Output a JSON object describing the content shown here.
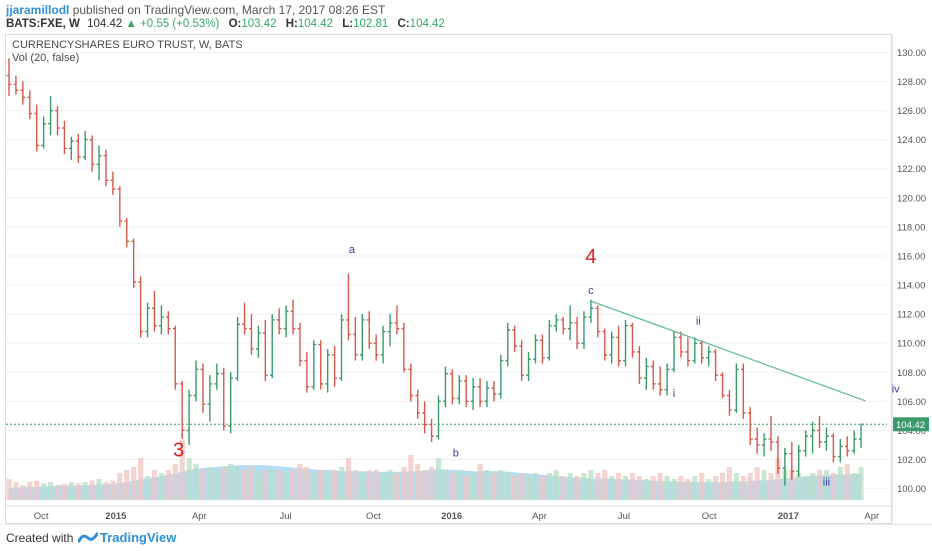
{
  "header": {
    "author": "jjaramillodl",
    "published": "published on TradingView.com, March 17, 2017 08:26 EST",
    "symbol": "BATS:FXE, W",
    "price": "104.42",
    "change": "+0.55 (+0.53%)",
    "o_label": "O:",
    "o_val": "103.42",
    "h_label": "H:",
    "h_val": "104.42",
    "l_label": "L:",
    "l_val": "102.81",
    "c_label": "C:",
    "c_val": "104.42"
  },
  "footer": {
    "created": "Created with",
    "brand": "TradingView"
  },
  "colors": {
    "up": "#3a9a6a",
    "down": "#d65a4a",
    "volume": "#a9d6ee",
    "trend": "#5fb89a",
    "count_red": "#e02020",
    "count_blue": "#3a3aa0"
  },
  "chart_data": {
    "type": "ohlc",
    "title": "CURRENCYSHARES EURO TRUST, W, BATS",
    "indicator": "Vol (20, false)",
    "y_ticks": [
      "130.00",
      "128.00",
      "126.00",
      "124.00",
      "122.00",
      "120.00",
      "118.00",
      "116.00",
      "114.00",
      "112.00",
      "110.00",
      "108.00",
      "106.00",
      "104.00",
      "102.00",
      "100.00"
    ],
    "ylim": [
      98.8,
      131.2
    ],
    "x_labels": [
      "Oct",
      "2015",
      "Apr",
      "Jul",
      "Oct",
      "2016",
      "Apr",
      "Jul",
      "Oct",
      "2017",
      "Apr"
    ],
    "last_price": "104.42",
    "bars": [
      [
        128.4,
        129.6,
        127.0,
        127.8
      ],
      [
        127.8,
        128.4,
        127.1,
        127.4
      ],
      [
        127.4,
        128.0,
        126.4,
        126.9
      ],
      [
        126.9,
        127.4,
        125.4,
        125.8
      ],
      [
        125.8,
        126.4,
        123.2,
        123.6
      ],
      [
        123.6,
        125.6,
        123.4,
        125.1
      ],
      [
        125.1,
        127.0,
        124.3,
        126.0
      ],
      [
        126.0,
        126.3,
        124.3,
        124.8
      ],
      [
        124.8,
        125.3,
        123.0,
        123.4
      ],
      [
        123.4,
        124.2,
        122.6,
        123.9
      ],
      [
        123.9,
        124.4,
        122.4,
        122.8
      ],
      [
        122.8,
        124.6,
        122.6,
        124.0
      ],
      [
        124.0,
        124.3,
        121.8,
        122.3
      ],
      [
        122.3,
        123.6,
        121.2,
        122.9
      ],
      [
        122.9,
        123.3,
        120.8,
        121.2
      ],
      [
        121.2,
        121.8,
        120.2,
        120.6
      ],
      [
        120.6,
        120.8,
        118.0,
        118.4
      ],
      [
        118.4,
        118.6,
        116.6,
        117.0
      ],
      [
        117.0,
        117.2,
        113.8,
        114.2
      ],
      [
        114.2,
        114.6,
        110.4,
        110.8
      ],
      [
        110.8,
        112.8,
        110.4,
        112.4
      ],
      [
        112.4,
        113.6,
        110.8,
        111.2
      ],
      [
        111.2,
        112.6,
        110.6,
        111.8
      ],
      [
        111.8,
        112.2,
        110.6,
        111.0
      ],
      [
        111.0,
        111.2,
        106.8,
        107.2
      ],
      [
        107.2,
        107.4,
        103.4,
        104.0
      ],
      [
        104.0,
        106.8,
        103.0,
        106.4
      ],
      [
        106.4,
        108.8,
        106.0,
        108.2
      ],
      [
        108.2,
        108.6,
        105.2,
        105.8
      ],
      [
        105.8,
        107.8,
        104.6,
        107.2
      ],
      [
        107.2,
        108.6,
        106.8,
        107.9
      ],
      [
        107.9,
        108.3,
        104.0,
        104.3
      ],
      [
        104.3,
        108.0,
        103.8,
        107.6
      ],
      [
        107.6,
        111.8,
        107.4,
        111.3
      ],
      [
        111.3,
        112.8,
        110.6,
        111.0
      ],
      [
        111.0,
        112.0,
        109.2,
        109.6
      ],
      [
        109.6,
        111.2,
        109.0,
        110.7
      ],
      [
        110.7,
        111.6,
        107.4,
        107.8
      ],
      [
        107.8,
        112.0,
        107.6,
        111.6
      ],
      [
        111.6,
        112.4,
        110.6,
        111.0
      ],
      [
        111.0,
        112.6,
        110.4,
        112.2
      ],
      [
        112.2,
        113.0,
        110.6,
        111.0
      ],
      [
        111.0,
        111.4,
        108.4,
        108.8
      ],
      [
        108.8,
        109.4,
        106.6,
        107.0
      ],
      [
        107.0,
        110.2,
        106.8,
        109.9
      ],
      [
        109.9,
        110.2,
        106.8,
        107.2
      ],
      [
        107.2,
        109.6,
        106.6,
        109.2
      ],
      [
        109.2,
        109.8,
        107.0,
        107.6
      ],
      [
        107.6,
        112.0,
        107.4,
        111.6
      ],
      [
        111.6,
        114.8,
        110.2,
        110.6
      ],
      [
        110.6,
        111.8,
        108.8,
        109.2
      ],
      [
        109.2,
        112.0,
        108.8,
        111.6
      ],
      [
        111.6,
        112.2,
        109.6,
        110.0
      ],
      [
        110.0,
        110.6,
        108.8,
        109.2
      ],
      [
        109.2,
        111.2,
        108.6,
        110.8
      ],
      [
        110.8,
        112.0,
        109.8,
        111.4
      ],
      [
        111.4,
        112.6,
        110.6,
        111.0
      ],
      [
        111.0,
        111.4,
        108.0,
        108.2
      ],
      [
        108.2,
        108.6,
        106.0,
        106.4
      ],
      [
        106.4,
        106.8,
        104.8,
        105.2
      ],
      [
        105.2,
        106.0,
        103.8,
        104.4
      ],
      [
        104.4,
        104.8,
        103.2,
        103.6
      ],
      [
        103.6,
        106.4,
        103.4,
        106.0
      ],
      [
        106.0,
        108.4,
        105.6,
        107.9
      ],
      [
        107.9,
        108.2,
        105.8,
        106.2
      ],
      [
        106.2,
        107.8,
        105.8,
        107.4
      ],
      [
        107.4,
        107.8,
        105.6,
        106.0
      ],
      [
        106.0,
        107.6,
        105.4,
        107.0
      ],
      [
        107.0,
        107.6,
        105.6,
        106.0
      ],
      [
        106.0,
        107.4,
        105.6,
        106.9
      ],
      [
        106.9,
        107.4,
        106.0,
        106.5
      ],
      [
        106.5,
        109.2,
        106.2,
        108.8
      ],
      [
        108.8,
        111.4,
        108.4,
        110.9
      ],
      [
        110.9,
        111.2,
        109.4,
        109.8
      ],
      [
        109.8,
        110.2,
        107.4,
        107.8
      ],
      [
        107.8,
        109.4,
        107.4,
        108.9
      ],
      [
        108.9,
        110.6,
        108.6,
        110.2
      ],
      [
        110.2,
        110.6,
        108.6,
        109.0
      ],
      [
        109.0,
        111.6,
        108.8,
        111.2
      ],
      [
        111.2,
        112.0,
        110.8,
        111.6
      ],
      [
        111.6,
        111.8,
        110.6,
        111.0
      ],
      [
        111.0,
        112.6,
        110.2,
        111.4
      ],
      [
        111.4,
        111.8,
        109.6,
        110.0
      ],
      [
        110.0,
        112.2,
        109.6,
        111.8
      ],
      [
        111.8,
        113.0,
        111.4,
        112.4
      ],
      [
        112.4,
        112.6,
        110.4,
        110.8
      ],
      [
        110.8,
        111.0,
        108.8,
        109.2
      ],
      [
        109.2,
        110.8,
        108.6,
        110.4
      ],
      [
        110.4,
        111.2,
        108.4,
        108.8
      ],
      [
        108.8,
        111.6,
        108.4,
        111.2
      ],
      [
        111.2,
        111.4,
        109.0,
        109.4
      ],
      [
        109.4,
        109.8,
        107.2,
        107.6
      ],
      [
        107.6,
        109.0,
        106.8,
        108.4
      ],
      [
        108.4,
        108.8,
        106.8,
        107.2
      ],
      [
        107.2,
        108.4,
        106.4,
        106.8
      ],
      [
        106.8,
        108.6,
        106.4,
        108.2
      ],
      [
        108.2,
        110.8,
        108.0,
        110.4
      ],
      [
        110.4,
        110.8,
        109.0,
        109.4
      ],
      [
        109.4,
        110.4,
        108.4,
        108.8
      ],
      [
        108.8,
        110.4,
        108.6,
        110.0
      ],
      [
        110.0,
        110.2,
        108.6,
        109.0
      ],
      [
        109.0,
        109.8,
        108.4,
        109.4
      ],
      [
        109.4,
        109.6,
        107.4,
        107.8
      ],
      [
        107.8,
        108.0,
        106.2,
        106.4
      ],
      [
        106.4,
        106.8,
        105.0,
        105.4
      ],
      [
        105.4,
        108.6,
        105.2,
        108.2
      ],
      [
        108.2,
        108.6,
        104.8,
        105.2
      ],
      [
        105.2,
        105.6,
        103.0,
        103.4
      ],
      [
        103.4,
        104.2,
        102.4,
        103.0
      ],
      [
        103.0,
        103.8,
        102.2,
        103.4
      ],
      [
        103.4,
        105.0,
        102.6,
        103.2
      ],
      [
        103.2,
        103.6,
        101.0,
        101.4
      ],
      [
        101.4,
        102.8,
        100.2,
        102.4
      ],
      [
        102.4,
        103.2,
        100.6,
        101.2
      ],
      [
        101.2,
        103.0,
        100.8,
        102.6
      ],
      [
        102.6,
        104.0,
        102.2,
        103.6
      ],
      [
        103.6,
        104.6,
        102.4,
        104.0
      ],
      [
        104.0,
        105.0,
        102.8,
        103.2
      ],
      [
        103.2,
        104.2,
        102.6,
        103.6
      ],
      [
        103.6,
        103.8,
        101.8,
        102.2
      ],
      [
        102.2,
        103.4,
        101.8,
        102.9
      ],
      [
        102.9,
        103.6,
        102.2,
        102.6
      ],
      [
        102.6,
        104.0,
        102.4,
        103.4
      ],
      [
        103.4,
        104.42,
        102.81,
        104.42
      ]
    ],
    "volume": [
      0.35,
      0.3,
      0.25,
      0.3,
      0.32,
      0.28,
      0.3,
      0.25,
      0.27,
      0.3,
      0.28,
      0.3,
      0.33,
      0.35,
      0.3,
      0.32,
      0.45,
      0.5,
      0.55,
      0.7,
      0.4,
      0.5,
      0.45,
      0.5,
      0.6,
      1.0,
      0.7,
      0.6,
      0.5,
      0.55,
      0.5,
      0.55,
      0.6,
      0.55,
      0.5,
      0.55,
      0.45,
      0.5,
      0.5,
      0.5,
      0.45,
      0.5,
      0.6,
      0.55,
      0.45,
      0.5,
      0.45,
      0.5,
      0.55,
      0.7,
      0.5,
      0.45,
      0.5,
      0.5,
      0.45,
      0.5,
      0.45,
      0.55,
      0.75,
      0.6,
      0.5,
      0.55,
      0.7,
      0.5,
      0.45,
      0.5,
      0.4,
      0.45,
      0.6,
      0.5,
      0.45,
      0.5,
      0.45,
      0.4,
      0.45,
      0.4,
      0.45,
      0.4,
      0.45,
      0.5,
      0.4,
      0.45,
      0.4,
      0.45,
      0.5,
      0.45,
      0.5,
      0.4,
      0.45,
      0.4,
      0.45,
      0.4,
      0.35,
      0.4,
      0.45,
      0.4,
      0.35,
      0.4,
      0.35,
      0.4,
      0.45,
      0.35,
      0.4,
      0.45,
      0.55,
      0.45,
      0.4,
      0.45,
      0.55,
      0.5,
      0.45,
      0.7,
      0.5,
      0.5,
      0.45,
      0.4,
      0.45,
      0.5,
      0.5,
      0.45,
      0.55,
      0.6,
      0.45,
      0.55
    ],
    "volume_ma": [
      0.2,
      0.21,
      0.21,
      0.22,
      0.22,
      0.23,
      0.23,
      0.24,
      0.24,
      0.24,
      0.24,
      0.25,
      0.25,
      0.26,
      0.26,
      0.27,
      0.28,
      0.3,
      0.32,
      0.34,
      0.36,
      0.38,
      0.4,
      0.42,
      0.44,
      0.48,
      0.5,
      0.52,
      0.53,
      0.54,
      0.55,
      0.56,
      0.57,
      0.58,
      0.58,
      0.58,
      0.58,
      0.58,
      0.57,
      0.56,
      0.55,
      0.54,
      0.53,
      0.52,
      0.51,
      0.5,
      0.5,
      0.49,
      0.48,
      0.48,
      0.48,
      0.48,
      0.47,
      0.47,
      0.47,
      0.47,
      0.47,
      0.47,
      0.48,
      0.48,
      0.49,
      0.5,
      0.51,
      0.51,
      0.5,
      0.5,
      0.49,
      0.48,
      0.48,
      0.48,
      0.48,
      0.48,
      0.47,
      0.46,
      0.45,
      0.44,
      0.43,
      0.42,
      0.41,
      0.4,
      0.39,
      0.38,
      0.37,
      0.37,
      0.36,
      0.36,
      0.36,
      0.35,
      0.35,
      0.34,
      0.34,
      0.33,
      0.33,
      0.32,
      0.32,
      0.31,
      0.31,
      0.31,
      0.3,
      0.3,
      0.3,
      0.3,
      0.3,
      0.3,
      0.31,
      0.31,
      0.31,
      0.32,
      0.32,
      0.33,
      0.34,
      0.35,
      0.36,
      0.37,
      0.38,
      0.39,
      0.4,
      0.41,
      0.41,
      0.42,
      0.42,
      0.43,
      0.43,
      0.44
    ],
    "trendline": {
      "from": [
        84,
        112.9
      ],
      "to": [
        121,
        105.9
      ]
    },
    "annotations": [
      {
        "text": "3",
        "bar": 24.5,
        "y": 102.2,
        "style": "red"
      },
      {
        "text": "a",
        "bar": 49.5,
        "y": 116.2,
        "style": "blue"
      },
      {
        "text": "b",
        "bar": 64.5,
        "y": 102.2,
        "style": "blue"
      },
      {
        "text": "4",
        "bar": 84,
        "y": 115.5,
        "style": "red"
      },
      {
        "text": "c",
        "bar": 84,
        "y": 113.4,
        "style": "blue"
      },
      {
        "text": "i",
        "bar": 96,
        "y": 106.3,
        "style": "blue"
      },
      {
        "text": "ii",
        "bar": 99.5,
        "y": 111.3,
        "style": "blue"
      },
      {
        "text": "iii",
        "bar": 118,
        "y": 100.2,
        "style": "blue"
      },
      {
        "text": "iv",
        "bar": 128,
        "y": 106.6,
        "style": "blue"
      }
    ]
  }
}
